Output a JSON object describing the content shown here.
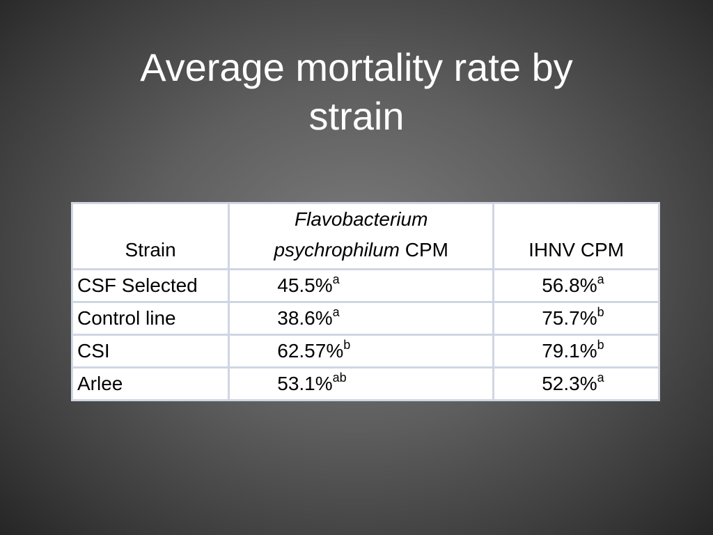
{
  "slide": {
    "title_line1": "Average mortality rate by",
    "title_line2": "strain"
  },
  "table": {
    "headers": {
      "strain": "Strain",
      "flavo_genus": "Flavobacterium",
      "flavo_species": "psychrophilum",
      "flavo_suffix": " CPM",
      "ihnv": "IHNV CPM"
    },
    "rows": [
      {
        "strain": "CSF Selected",
        "flavo_value": "45.5%",
        "flavo_sup": "a",
        "ihnv_value": "56.8%",
        "ihnv_sup": "a"
      },
      {
        "strain": "Control line",
        "flavo_value": "38.6%",
        "flavo_sup": "a",
        "ihnv_value": "75.7%",
        "ihnv_sup": "b"
      },
      {
        "strain": "CSI",
        "flavo_value": "62.57%",
        "flavo_sup": "b",
        "ihnv_value": "79.1%",
        "ihnv_sup": "b"
      },
      {
        "strain": "Arlee",
        "flavo_value": "53.1%",
        "flavo_sup": "ab",
        "ihnv_value": "52.3%",
        "ihnv_sup": "a"
      }
    ]
  },
  "colors": {
    "background": "#5e5e5e",
    "title_text": "#ffffff",
    "table_border": "#cfd6e3",
    "table_bg": "#ffffff"
  }
}
